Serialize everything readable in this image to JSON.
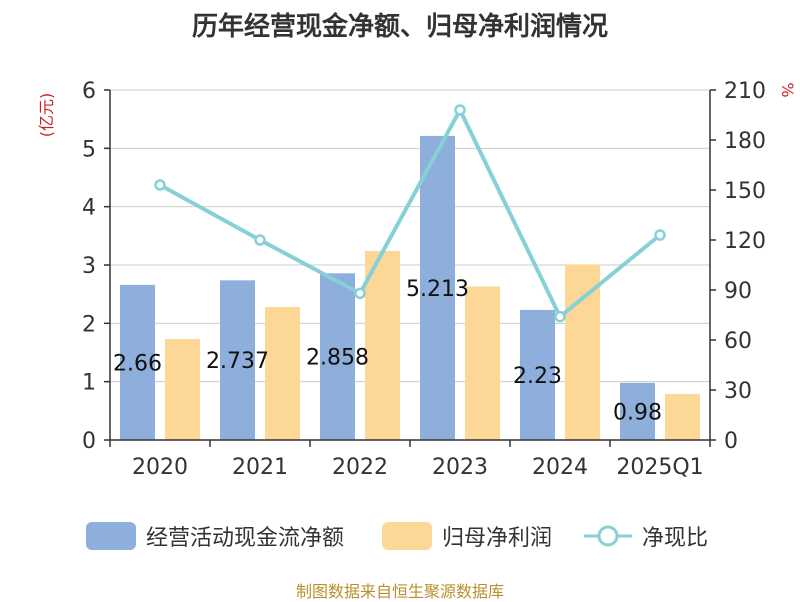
{
  "title": "历年经营现金净额、归母净利润情况",
  "source": "制图数据来自恒生聚源数据库",
  "chart_data": {
    "type": "bar",
    "title": "历年经营现金净额、归母净利润情况",
    "categories": [
      "2020",
      "2021",
      "2022",
      "2023",
      "2024",
      "2025Q1"
    ],
    "y_left": {
      "label": "(亿元)",
      "range": [
        0,
        6
      ],
      "ticks": [
        "0",
        "1",
        "2",
        "3",
        "4",
        "5",
        "6"
      ]
    },
    "y_right": {
      "label": "%",
      "range": [
        0,
        210
      ],
      "ticks": [
        "0",
        "30",
        "60",
        "90",
        "120",
        "150",
        "180",
        "210"
      ]
    },
    "series": [
      {
        "name": "经营活动现金流净额",
        "type": "bar",
        "axis": "left",
        "color": "#8eaedb",
        "values": [
          2.66,
          2.737,
          2.858,
          5.213,
          2.23,
          0.98
        ],
        "labels": [
          "2.66",
          "2.737",
          "2.858",
          "5.213",
          "2.23",
          "0.98"
        ]
      },
      {
        "name": "归母净利润",
        "type": "bar",
        "axis": "left",
        "color": "#fdd795",
        "values": [
          1.73,
          2.28,
          3.24,
          2.63,
          3.01,
          0.79
        ]
      },
      {
        "name": "净现比",
        "type": "line",
        "axis": "right",
        "color": "#86d1d6",
        "values": [
          153,
          120,
          88,
          198,
          74,
          123
        ]
      }
    ],
    "grid": true,
    "legend": "bottom"
  }
}
